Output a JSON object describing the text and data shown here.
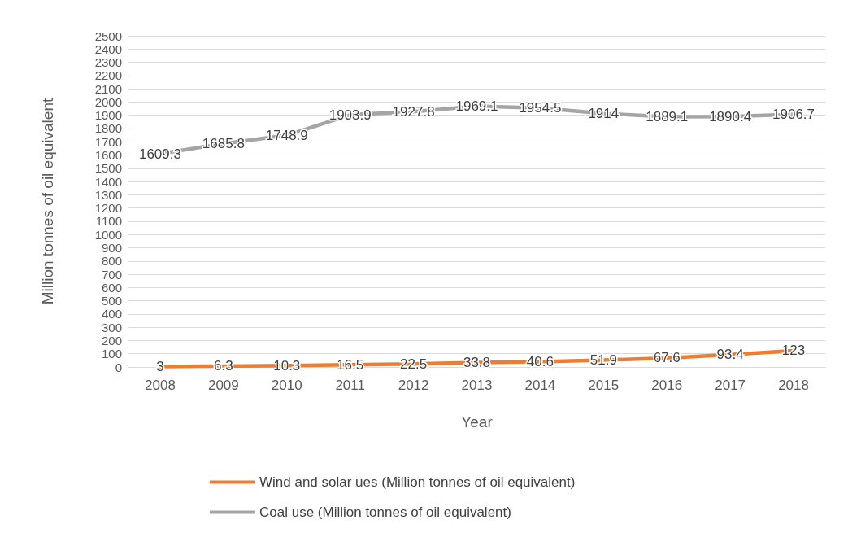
{
  "chart_data": {
    "type": "line",
    "xlabel": "Year",
    "ylabel": "Million tonnes of oil equivalent",
    "categories": [
      "2008",
      "2009",
      "2010",
      "2011",
      "2012",
      "2013",
      "2014",
      "2015",
      "2016",
      "2017",
      "2018"
    ],
    "series": [
      {
        "name": "Wind and solar ues (Million tonnes of oil equivalent)",
        "color": "#ed7d31",
        "values": [
          3,
          6.3,
          10.3,
          16.5,
          22.5,
          33.8,
          40.6,
          51.9,
          67.6,
          93.4,
          123
        ]
      },
      {
        "name": "Coal use (Million tonnes of oil equivalent)",
        "color": "#a5a5a5",
        "values": [
          1609.3,
          1685.8,
          1748.9,
          1903.9,
          1927.8,
          1969.1,
          1954.5,
          1914,
          1889.1,
          1890.4,
          1906.7
        ]
      }
    ],
    "ylim": [
      0,
      2500
    ],
    "yticks": [
      0,
      100,
      200,
      300,
      400,
      500,
      600,
      700,
      800,
      900,
      1000,
      1100,
      1200,
      1300,
      1400,
      1500,
      1600,
      1700,
      1800,
      1900,
      2000,
      2100,
      2200,
      2300,
      2400,
      2500
    ],
    "grid": "y",
    "legend": "bottom",
    "marker": "none",
    "line_style": "solid",
    "data_labels": true
  }
}
